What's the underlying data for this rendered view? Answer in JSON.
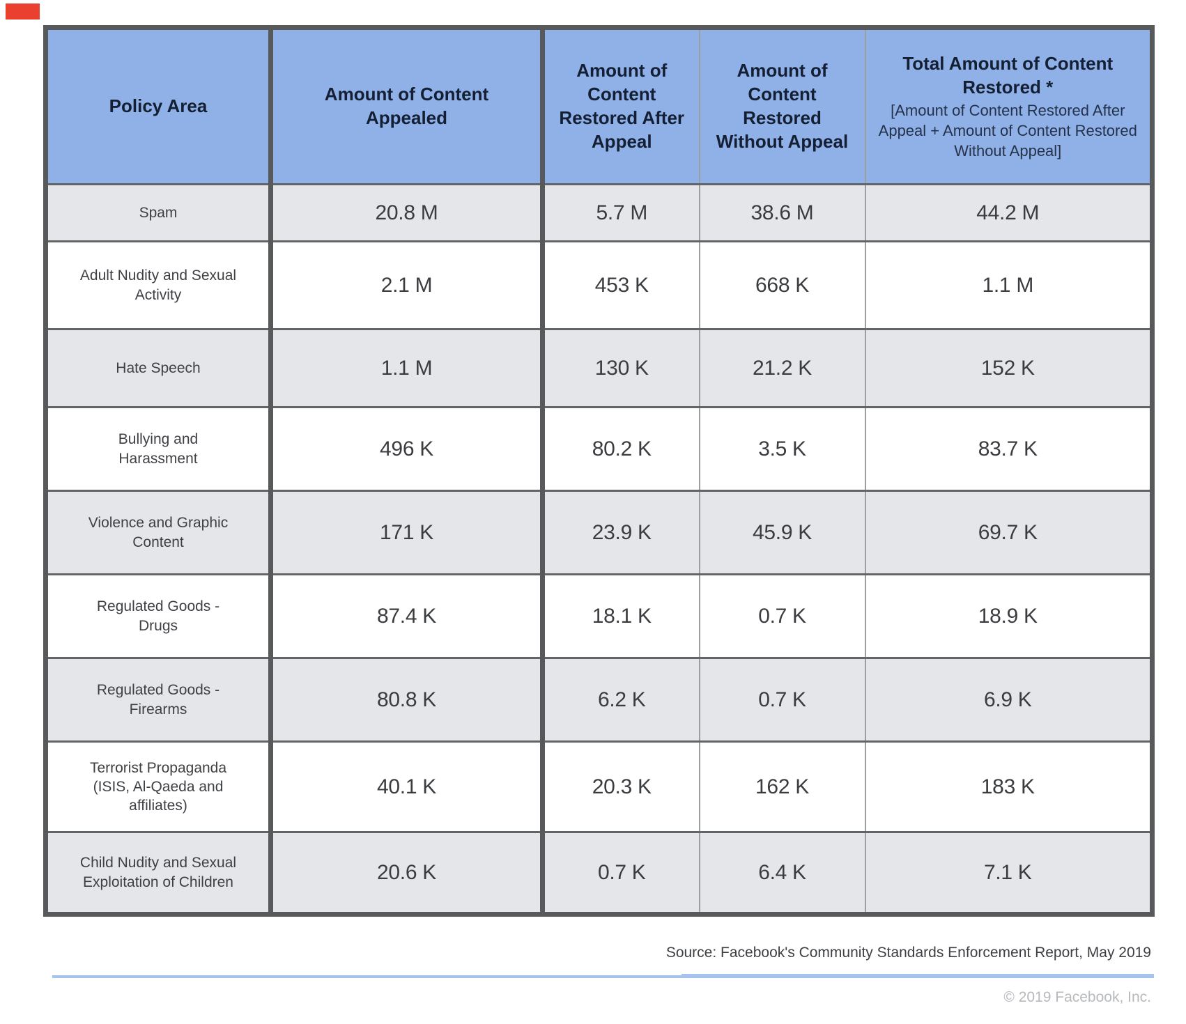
{
  "colors": {
    "header_bg": "#8fb1e8",
    "header_text": "#141f33",
    "stripe_bg": "#e4e6e9",
    "border_dark": "#58595b",
    "divider_blue": "#a5c3ed",
    "marker_red": "#e9402f"
  },
  "table": {
    "columns": [
      {
        "label": "Policy Area"
      },
      {
        "label": "Amount of Content Appealed"
      },
      {
        "label": "Amount of Content Restored After Appeal"
      },
      {
        "label": "Amount of Content Restored Without Appeal"
      },
      {
        "label": "Total Amount of Content Restored *",
        "sublabel": "[Amount of Content Restored After Appeal + Amount of Content Restored Without Appeal]"
      }
    ],
    "rows": [
      {
        "policy_area": "Spam",
        "appealed": "20.8 M",
        "restored_after_appeal": "5.7 M",
        "restored_without_appeal": "38.6 M",
        "total_restored": "44.2 M"
      },
      {
        "policy_area": "Adult Nudity and Sexual Activity",
        "appealed": "2.1 M",
        "restored_after_appeal": "453 K",
        "restored_without_appeal": "668 K",
        "total_restored": "1.1 M"
      },
      {
        "policy_area": "Hate Speech",
        "appealed": "1.1 M",
        "restored_after_appeal": "130 K",
        "restored_without_appeal": "21.2 K",
        "total_restored": "152 K"
      },
      {
        "policy_area": "Bullying and Harassment",
        "appealed": "496 K",
        "restored_after_appeal": "80.2 K",
        "restored_without_appeal": "3.5 K",
        "total_restored": "83.7 K"
      },
      {
        "policy_area": "Violence and Graphic Content",
        "appealed": "171 K",
        "restored_after_appeal": "23.9 K",
        "restored_without_appeal": "45.9 K",
        "total_restored": "69.7 K"
      },
      {
        "policy_area": "Regulated Goods - Drugs",
        "appealed": "87.4 K",
        "restored_after_appeal": "18.1 K",
        "restored_without_appeal": "0.7 K",
        "total_restored": "18.9 K"
      },
      {
        "policy_area": "Regulated Goods - Firearms",
        "appealed": "80.8 K",
        "restored_after_appeal": "6.2 K",
        "restored_without_appeal": "0.7 K",
        "total_restored": "6.9 K"
      },
      {
        "policy_area": "Terrorist Propaganda (ISIS, Al-Qaeda and affiliates)",
        "appealed": "40.1 K",
        "restored_after_appeal": "20.3 K",
        "restored_without_appeal": "162 K",
        "total_restored": "183 K"
      },
      {
        "policy_area": "Child Nudity and Sexual Exploitation of Children",
        "appealed": "20.6 K",
        "restored_after_appeal": "0.7 K",
        "restored_without_appeal": "6.4 K",
        "total_restored": "7.1 K"
      }
    ]
  },
  "footer": {
    "source": "Source: Facebook's Community Standards Enforcement Report, May 2019",
    "copyright": "© 2019 Facebook, Inc."
  },
  "chart_data": {
    "type": "table",
    "columns": [
      "Policy Area",
      "Amount of Content Appealed",
      "Amount of Content Restored After Appeal",
      "Amount of Content Restored Without Appeal",
      "Total Amount of Content Restored * [Amount of Content Restored After Appeal + Amount of Content Restored Without Appeal]"
    ],
    "rows": [
      [
        "Spam",
        "20.8 M",
        "5.7 M",
        "38.6 M",
        "44.2 M"
      ],
      [
        "Adult Nudity and Sexual Activity",
        "2.1 M",
        "453 K",
        "668 K",
        "1.1 M"
      ],
      [
        "Hate Speech",
        "1.1 M",
        "130 K",
        "21.2 K",
        "152 K"
      ],
      [
        "Bullying and Harassment",
        "496 K",
        "80.2 K",
        "3.5 K",
        "83.7 K"
      ],
      [
        "Violence and Graphic Content",
        "171 K",
        "23.9 K",
        "45.9 K",
        "69.7 K"
      ],
      [
        "Regulated Goods - Drugs",
        "87.4 K",
        "18.1 K",
        "0.7 K",
        "18.9 K"
      ],
      [
        "Regulated Goods - Firearms",
        "80.8 K",
        "6.2 K",
        "0.7 K",
        "6.9 K"
      ],
      [
        "Terrorist Propaganda (ISIS, Al-Qaeda and affiliates)",
        "40.1 K",
        "20.3 K",
        "162 K",
        "183 K"
      ],
      [
        "Child Nudity and Sexual Exploitation of Children",
        "20.6 K",
        "0.7 K",
        "6.4 K",
        "7.1 K"
      ]
    ],
    "source_note": "Source: Facebook's Community Standards Enforcement Report, May 2019"
  }
}
